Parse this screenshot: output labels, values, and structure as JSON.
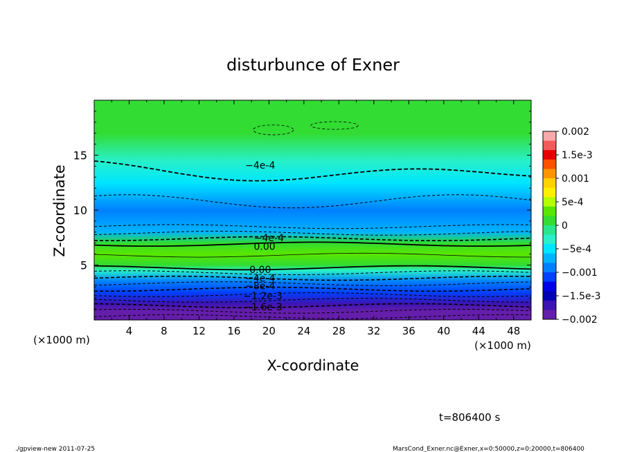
{
  "chart_data": {
    "type": "heatmap",
    "title": "disturbunce of Exner",
    "xlabel": "X-coordinate",
    "ylabel": "Z-coordinate",
    "x_unit": "(×1000 m)",
    "xlim": [
      0,
      50
    ],
    "ylim": [
      0,
      20
    ],
    "x_ticks": [
      "4",
      "8",
      "12",
      "16",
      "20",
      "24",
      "28",
      "32",
      "36",
      "40",
      "44",
      "48"
    ],
    "y_ticks": [
      "5",
      "10",
      "15"
    ],
    "colorbar": {
      "range": [
        -0.002,
        0.002
      ],
      "labels": [
        "0.002",
        "1.5e-3",
        "0.001",
        "5e-4",
        "0",
        "−5e-4",
        "−0.001",
        "−1.5e-3",
        "−0.002"
      ],
      "colors": [
        "#f7a9a9",
        "#f25a5a",
        "#e60000",
        "#ff5000",
        "#ff9600",
        "#ffd200",
        "#fff000",
        "#b4ff00",
        "#5ae600",
        "#32dc32",
        "#28e68c",
        "#28f0c8",
        "#00e6ff",
        "#00b4ff",
        "#0080ff",
        "#0040ff",
        "#0000e6",
        "#0000b4",
        "#3c14b4",
        "#641eaa"
      ]
    },
    "profile": [
      {
        "z": 0.0,
        "value": -0.002
      },
      {
        "z": 0.8,
        "value": -0.0018
      },
      {
        "z": 1.5,
        "value": -0.0016
      },
      {
        "z": 2.5,
        "value": -0.0012
      },
      {
        "z": 3.5,
        "value": -0.0008
      },
      {
        "z": 4.5,
        "value": -0.0003
      },
      {
        "z": 5.0,
        "value": 0.0001
      },
      {
        "z": 6.0,
        "value": 0.0003
      },
      {
        "z": 7.0,
        "value": 0.0001
      },
      {
        "z": 8.0,
        "value": -0.0007
      },
      {
        "z": 10.0,
        "value": -0.0008
      },
      {
        "z": 12.5,
        "value": -0.0005
      },
      {
        "z": 14.5,
        "value": -0.0002
      },
      {
        "z": 17.0,
        "value": 0.0001
      },
      {
        "z": 20.0,
        "value": 0.0002
      }
    ],
    "contour_labels": [
      "−4e-4",
      "−4e-4",
      "0.00",
      "0.00",
      "−4e-4",
      "−8e-4",
      "−1.2e-3",
      "−1.6e-3"
    ],
    "time_label": "t=806400 s"
  },
  "footer": {
    "left": "./gpview-new   2011-07-25",
    "right": "MarsCond_Exner.nc@Exner,x=0:50000,z=0:20000,t=806400"
  }
}
